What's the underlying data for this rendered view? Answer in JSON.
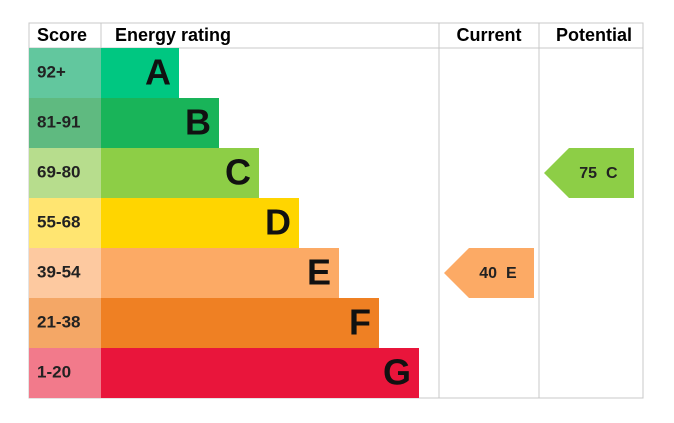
{
  "headers": {
    "score": "Score",
    "rating": "Energy rating",
    "current": "Current",
    "potential": "Potential"
  },
  "bands": [
    {
      "score": "92+",
      "letter": "A",
      "color": "#00c781",
      "score_color": "#62c79e"
    },
    {
      "score": "81-91",
      "letter": "B",
      "color": "#19b459",
      "score_color": "#5fba80"
    },
    {
      "score": "69-80",
      "letter": "C",
      "color": "#8dce46",
      "score_color": "#b7dd8d"
    },
    {
      "score": "55-68",
      "letter": "D",
      "color": "#ffd500",
      "score_color": "#ffe571"
    },
    {
      "score": "39-54",
      "letter": "E",
      "color": "#fcaa65",
      "score_color": "#fdc9a0"
    },
    {
      "score": "21-38",
      "letter": "F",
      "color": "#ef8023",
      "score_color": "#f4a766"
    },
    {
      "score": "1-20",
      "letter": "G",
      "color": "#e9153b",
      "score_color": "#f27a8b"
    }
  ],
  "current": {
    "value": 40,
    "letter": "E"
  },
  "potential": {
    "value": 75,
    "letter": "C"
  }
}
